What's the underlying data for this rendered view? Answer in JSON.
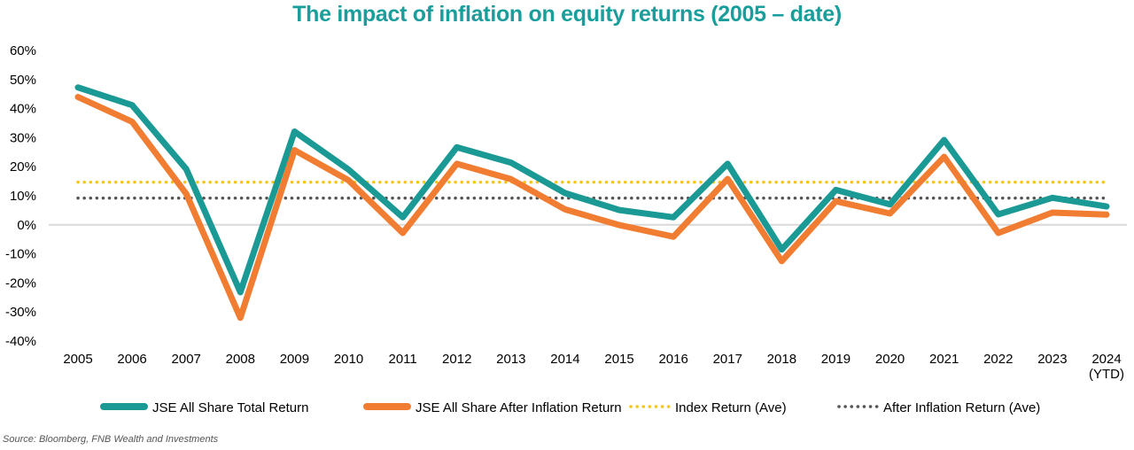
{
  "title": "The impact of inflation on equity returns (2005 – date)",
  "source": "Source: Bloomberg, FNB Wealth and Investments",
  "colors": {
    "title": "#1a9e9b",
    "total": "#1a9995",
    "after": "#f07d32",
    "index_ave": "#f5c518",
    "after_ave": "#555555",
    "zero_line": "#d9d9d9"
  },
  "chart_data": {
    "type": "line",
    "title": "The impact of inflation on equity returns (2005 – date)",
    "x": [
      "2005",
      "2006",
      "2007",
      "2008",
      "2009",
      "2010",
      "2011",
      "2012",
      "2013",
      "2014",
      "2015",
      "2016",
      "2017",
      "2018",
      "2019",
      "2020",
      "2021",
      "2022",
      "2023",
      "2024"
    ],
    "x_tick_labels": [
      [
        "2005"
      ],
      [
        "2006"
      ],
      [
        "2007"
      ],
      [
        "2008"
      ],
      [
        "2009"
      ],
      [
        "2010"
      ],
      [
        "2011"
      ],
      [
        "2012"
      ],
      [
        "2013"
      ],
      [
        "2014"
      ],
      [
        "2015"
      ],
      [
        "2016"
      ],
      [
        "2017"
      ],
      [
        "2018"
      ],
      [
        "2019"
      ],
      [
        "2020"
      ],
      [
        "2021"
      ],
      [
        "2022"
      ],
      [
        "2023"
      ],
      [
        "2024",
        "(YTD)"
      ]
    ],
    "y_ticks": [
      60,
      50,
      40,
      30,
      20,
      10,
      0,
      -10,
      -20,
      -30,
      -40
    ],
    "y_tick_labels": [
      "60%",
      "50%",
      "40%",
      "30%",
      "20%",
      "10%",
      "0%",
      "-10%",
      "-20%",
      "-30%",
      "-40%"
    ],
    "ylim": [
      -40,
      60
    ],
    "grid": false,
    "legend_position": "bottom",
    "series": [
      {
        "name": "JSE All Share Total Return",
        "style": "solid-thick",
        "color": "#1a9995",
        "values": [
          47.3,
          41.2,
          19.2,
          -23.2,
          32.1,
          19.0,
          2.6,
          26.7,
          21.4,
          10.9,
          5.1,
          2.6,
          21.0,
          -8.5,
          12.0,
          7.0,
          29.2,
          3.6,
          9.3,
          6.3
        ]
      },
      {
        "name": "JSE All Share After Inflation Return",
        "style": "solid-thick",
        "color": "#f07d32",
        "values": [
          44.0,
          35.5,
          10.7,
          -32.0,
          25.7,
          15.3,
          -2.8,
          21.0,
          15.7,
          5.3,
          -0.1,
          -4.1,
          15.8,
          -12.5,
          8.1,
          3.9,
          23.4,
          -2.8,
          4.2,
          3.5
        ]
      },
      {
        "name": "Index Return (Ave)",
        "style": "dotted",
        "color": "#f5c518",
        "values": [
          14.7,
          14.7,
          14.7,
          14.7,
          14.7,
          14.7,
          14.7,
          14.7,
          14.7,
          14.7,
          14.7,
          14.7,
          14.7,
          14.7,
          14.7,
          14.7,
          14.7,
          14.7,
          14.7,
          14.7
        ]
      },
      {
        "name": "After Inflation Return (Ave)",
        "style": "dotted",
        "color": "#555555",
        "values": [
          9.2,
          9.2,
          9.2,
          9.2,
          9.2,
          9.2,
          9.2,
          9.2,
          9.2,
          9.2,
          9.2,
          9.2,
          9.2,
          9.2,
          9.2,
          9.2,
          9.2,
          9.2,
          9.2,
          9.2
        ]
      }
    ]
  }
}
